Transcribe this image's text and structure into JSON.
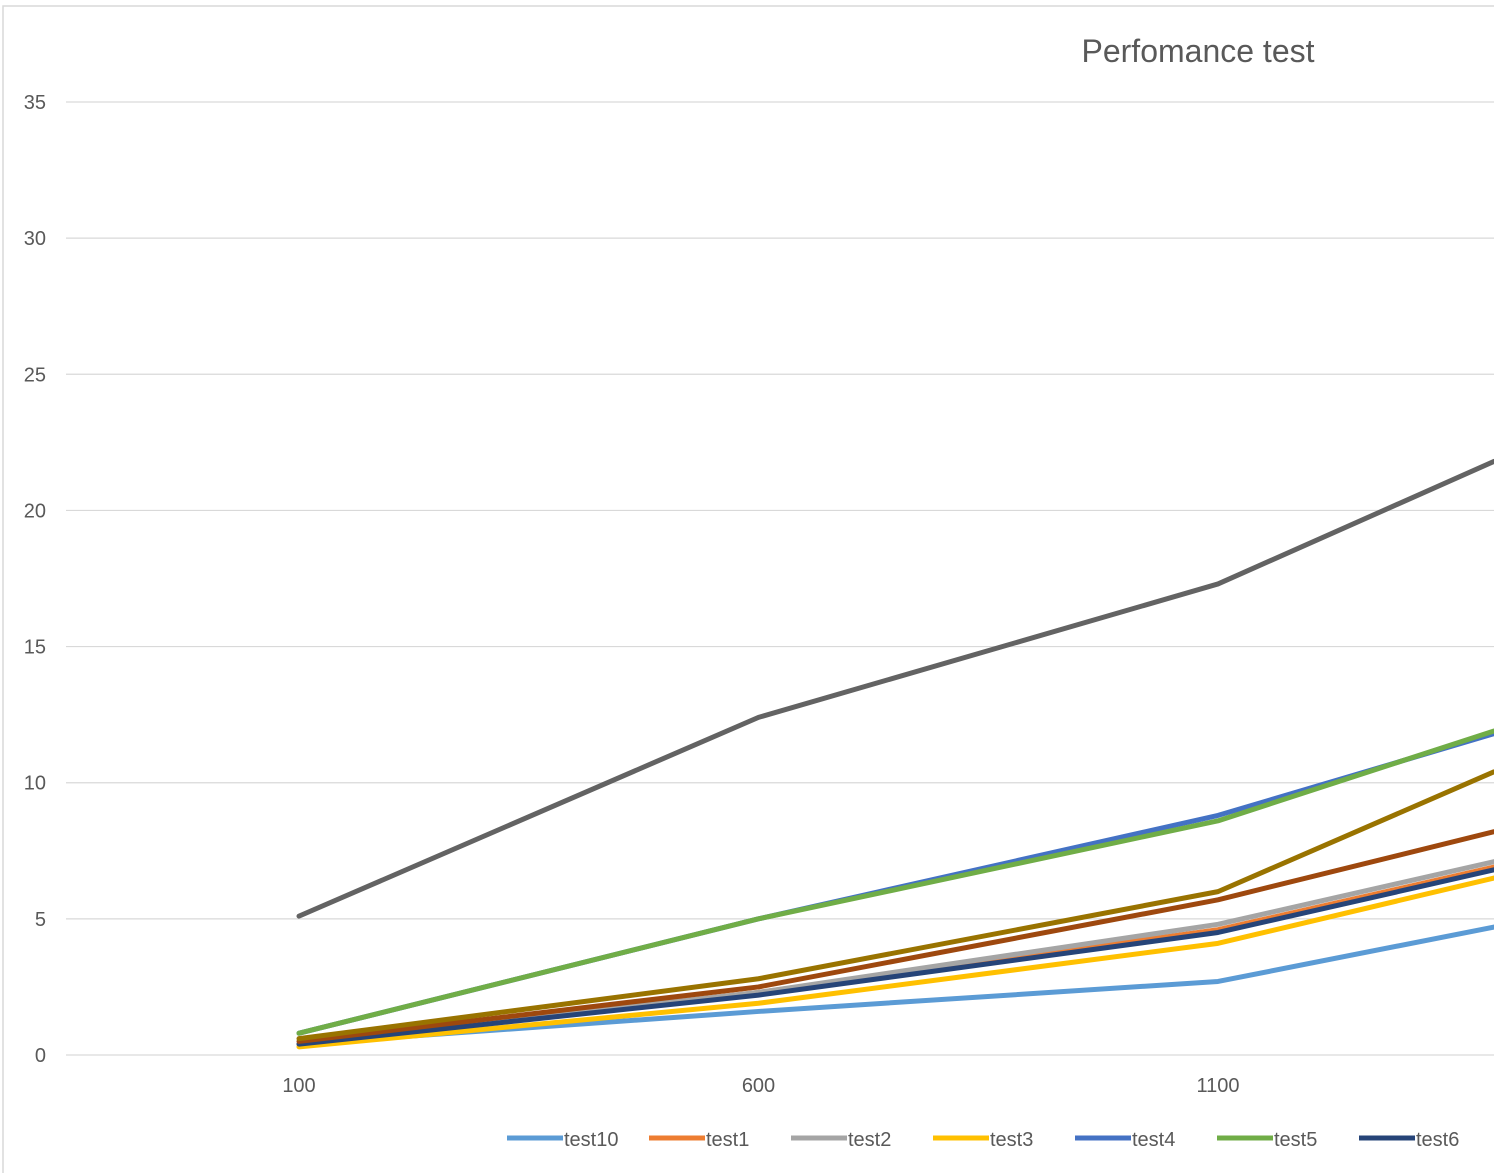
{
  "chart_data": {
    "type": "line",
    "title": "Perfomance test",
    "xlabel": "",
    "ylabel": "",
    "categories": [
      "100",
      "600",
      "1100"
    ],
    "x_axis_ticks": [
      "100",
      "600",
      "1100"
    ],
    "y_axis_ticks": [
      "0",
      "5",
      "10",
      "15",
      "20",
      "25",
      "30",
      "35"
    ],
    "ylim": [
      0,
      35
    ],
    "grid": true,
    "legend_position": "bottom",
    "series": [
      {
        "name": "test10",
        "color": "#5b9bd5",
        "values": [
          0.4,
          1.6,
          2.7
        ],
        "trailing_value": 4.7,
        "in_legend": true
      },
      {
        "name": "test1",
        "color": "#ed7d31",
        "values": [
          0.4,
          2.3,
          4.6
        ],
        "trailing_value": 6.9,
        "in_legend": true
      },
      {
        "name": "test2",
        "color": "#a5a5a5",
        "values": [
          0.4,
          2.3,
          4.8
        ],
        "trailing_value": 7.1,
        "in_legend": true
      },
      {
        "name": "test3",
        "color": "#ffc000",
        "values": [
          0.3,
          1.9,
          4.1
        ],
        "trailing_value": 6.5,
        "in_legend": true
      },
      {
        "name": "test4",
        "color": "#4472c4",
        "values": [
          0.8,
          5.0,
          8.8
        ],
        "trailing_value": 11.8,
        "in_legend": true
      },
      {
        "name": "test5",
        "color": "#70ad47",
        "values": [
          0.8,
          5.0,
          8.6
        ],
        "trailing_value": 11.9,
        "in_legend": true
      },
      {
        "name": "test6",
        "color": "#264478",
        "values": [
          0.4,
          2.2,
          4.5
        ],
        "trailing_value": 6.8,
        "in_legend": true
      },
      {
        "name": "",
        "color": "#9e480e",
        "values": [
          0.5,
          2.5,
          5.7
        ],
        "trailing_value": 8.2,
        "in_legend": false
      },
      {
        "name": "",
        "color": "#636363",
        "values": [
          5.1,
          12.4,
          17.3
        ],
        "trailing_value": 21.8,
        "in_legend": false
      },
      {
        "name": "",
        "color": "#997300",
        "values": [
          0.6,
          2.8,
          6.0
        ],
        "trailing_value": 10.4,
        "in_legend": false
      }
    ]
  }
}
